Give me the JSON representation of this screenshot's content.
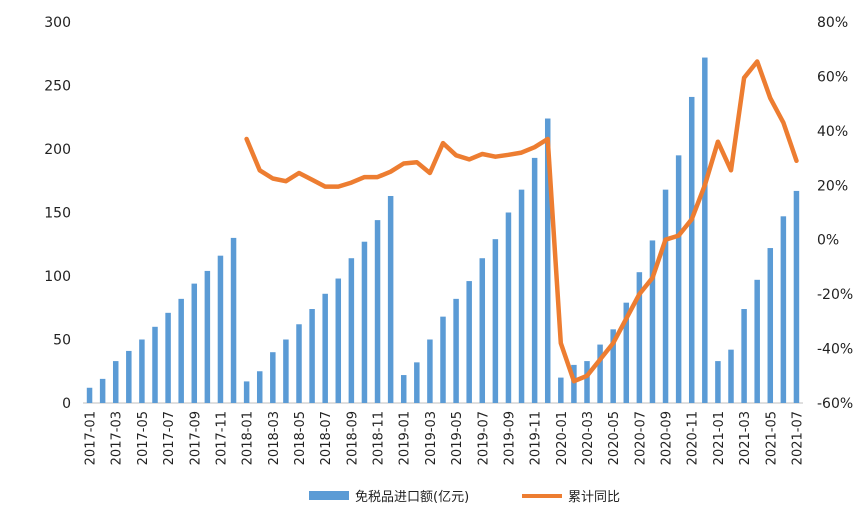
{
  "chart_data": {
    "type": "bar",
    "categories": [
      "2017-01",
      "2017-02",
      "2017-03",
      "2017-04",
      "2017-05",
      "2017-06",
      "2017-07",
      "2017-08",
      "2017-09",
      "2017-10",
      "2017-11",
      "2017-12",
      "2018-01",
      "2018-02",
      "2018-03",
      "2018-04",
      "2018-05",
      "2018-06",
      "2018-07",
      "2018-08",
      "2018-09",
      "2018-10",
      "2018-11",
      "2018-12",
      "2019-01",
      "2019-02",
      "2019-03",
      "2019-04",
      "2019-05",
      "2019-06",
      "2019-07",
      "2019-08",
      "2019-09",
      "2019-10",
      "2019-11",
      "2019-12",
      "2020-01",
      "2020-02",
      "2020-03",
      "2020-04",
      "2020-05",
      "2020-06",
      "2020-07",
      "2020-08",
      "2020-09",
      "2020-10",
      "2020-11",
      "2020-12",
      "2021-01",
      "2021-02",
      "2021-03",
      "2021-04",
      "2021-05",
      "2021-06",
      "2021-07"
    ],
    "x_tick_labels": [
      "2017-01",
      "2017-03",
      "2017-05",
      "2017-07",
      "2017-09",
      "2017-11",
      "2018-01",
      "2018-03",
      "2018-05",
      "2018-07",
      "2018-09",
      "2018-11",
      "2019-01",
      "2019-03",
      "2019-05",
      "2019-07",
      "2019-09",
      "2019-11",
      "2020-01",
      "2020-03",
      "2020-05",
      "2020-07",
      "2020-09",
      "2020-11",
      "2021-01",
      "2021-03",
      "2021-05",
      "2021-07"
    ],
    "y_left_ticks": [
      "0",
      "50",
      "100",
      "150",
      "200",
      "250",
      "300"
    ],
    "y_right_ticks": [
      "-60%",
      "-40%",
      "-20%",
      "0%",
      "20%",
      "40%",
      "60%",
      "80%"
    ],
    "ylim_left": [
      0,
      300
    ],
    "ylim_right": [
      -60,
      80
    ],
    "series": [
      {
        "name": "免税品进口额(亿元)",
        "kind": "bar",
        "axis": "left",
        "color": "#5B9BD5",
        "values": [
          12,
          19,
          33,
          41,
          50,
          60,
          71,
          82,
          94,
          104,
          116,
          130,
          17,
          25,
          40,
          50,
          62,
          74,
          86,
          98,
          114,
          127,
          144,
          163,
          22,
          32,
          50,
          68,
          82,
          96,
          114,
          129,
          150,
          168,
          193,
          224,
          20,
          30,
          33,
          46,
          58,
          79,
          103,
          128,
          168,
          195,
          241,
          272,
          33,
          42,
          74,
          97,
          122,
          147,
          167
        ]
      },
      {
        "name": "累计同比",
        "kind": "line",
        "axis": "right",
        "color": "#ED7D31",
        "values": [
          null,
          null,
          null,
          null,
          null,
          null,
          null,
          null,
          null,
          null,
          null,
          null,
          37,
          25.5,
          22.5,
          21.5,
          24.5,
          22,
          19.5,
          19.5,
          21,
          23,
          23,
          25,
          28,
          28.5,
          24.5,
          35.5,
          31,
          29.5,
          31.5,
          30.5,
          31.2,
          32,
          34,
          37,
          -38,
          -52,
          -50,
          -44,
          -38,
          -29,
          -20,
          -14,
          0,
          1.5,
          7.5,
          20,
          36,
          25.5,
          59.5,
          65.5,
          52,
          43,
          29
        ]
      }
    ],
    "legend_position": "bottom",
    "grid": false
  }
}
